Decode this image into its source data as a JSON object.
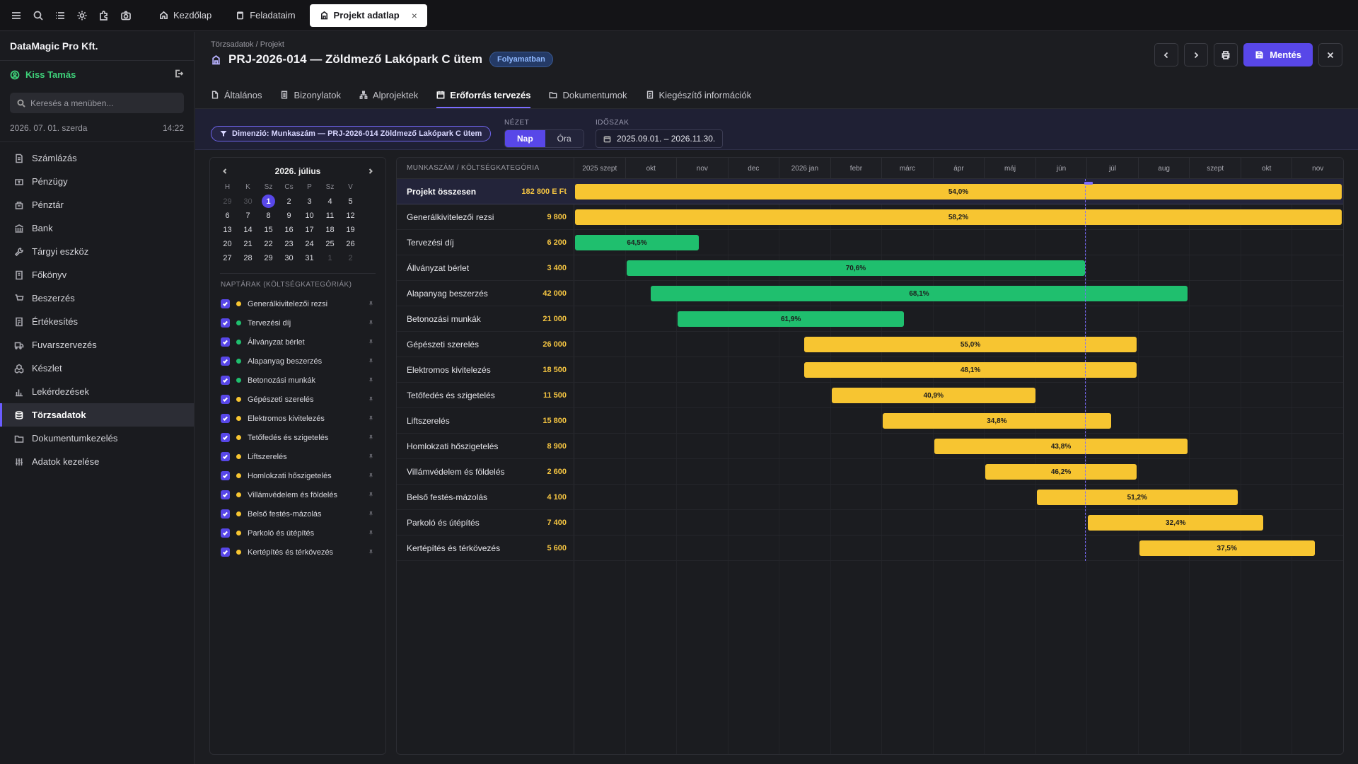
{
  "topbar": {
    "icons": [
      "menu-icon",
      "search-icon",
      "list-icon",
      "gear-icon",
      "puzzle-icon",
      "camera-icon"
    ],
    "tabs": [
      {
        "label": "Kezdőlap",
        "icon": "home-icon"
      },
      {
        "label": "Feladataim",
        "icon": "clipboard-icon"
      },
      {
        "label": "Projekt adatlap",
        "icon": "building-icon",
        "active": true,
        "closable": true
      }
    ],
    "close_symbol": "×"
  },
  "sidebar": {
    "company": "DataMagic Pro Kft.",
    "user": "Kiss Tamás",
    "search_placeholder": "Keresés a menüben...",
    "date": "2026. 07. 01. szerda",
    "time": "14:22",
    "items": [
      {
        "label": "Számlázás",
        "icon": "invoice-icon"
      },
      {
        "label": "Pénzügy",
        "icon": "money-icon"
      },
      {
        "label": "Pénztár",
        "icon": "cashbox-icon"
      },
      {
        "label": "Bank",
        "icon": "bank-icon"
      },
      {
        "label": "Tárgyi eszköz",
        "icon": "tool-icon"
      },
      {
        "label": "Főkönyv",
        "icon": "ledger-icon"
      },
      {
        "label": "Beszerzés",
        "icon": "cart-icon"
      },
      {
        "label": "Értékesítés",
        "icon": "sales-icon"
      },
      {
        "label": "Fuvarszervezés",
        "icon": "truck-icon"
      },
      {
        "label": "Készlet",
        "icon": "boxes-icon"
      },
      {
        "label": "Lekérdezések",
        "icon": "chart-icon"
      },
      {
        "label": "Törzsadatok",
        "icon": "database-icon",
        "active": true
      },
      {
        "label": "Dokumentumkezelés",
        "icon": "folder-icon"
      },
      {
        "label": "Adatok kezelése",
        "icon": "sliders-icon"
      }
    ]
  },
  "header": {
    "breadcrumb": "Törzsadatok / Projekt",
    "title": "PRJ-2026-014 — Zöldmező Lakópark C ütem",
    "status": "Folyamatban",
    "save_label": "Mentés"
  },
  "subtabs": [
    {
      "label": "Általános",
      "icon": "doc-icon"
    },
    {
      "label": "Bizonylatok",
      "icon": "receipt-icon"
    },
    {
      "label": "Alprojektek",
      "icon": "hierarchy-icon"
    },
    {
      "label": "Erőforrás tervezés",
      "icon": "calendar-icon",
      "active": true
    },
    {
      "label": "Dokumentumok",
      "icon": "folder-icon"
    },
    {
      "label": "Kiegészítő információk",
      "icon": "info-doc-icon"
    }
  ],
  "filters": {
    "dimension": "Dimenzió: Munkaszám — PRJ-2026-014 Zöldmező Lakópark C ütem",
    "view_label": "NÉZET",
    "view_options": [
      "Nap",
      "Óra"
    ],
    "view_selected": "Nap",
    "period_label": "IDŐSZAK",
    "period": "2025.09.01. – 2026.11.30."
  },
  "calendar": {
    "month": "2026. július",
    "dow": [
      "H",
      "K",
      "Sz",
      "Cs",
      "P",
      "Sz",
      "V"
    ],
    "weeks": [
      [
        "29",
        "30",
        "1",
        "2",
        "3",
        "4",
        "5"
      ],
      [
        "6",
        "7",
        "8",
        "9",
        "10",
        "11",
        "12"
      ],
      [
        "13",
        "14",
        "15",
        "16",
        "17",
        "18",
        "19"
      ],
      [
        "20",
        "21",
        "22",
        "23",
        "24",
        "25",
        "26"
      ],
      [
        "27",
        "28",
        "29",
        "30",
        "31",
        "1",
        "2"
      ]
    ],
    "selected_day": "1",
    "categories_title": "NAPTÁRAK (KÖLTSÉGKATEGÓRIÁK)"
  },
  "colors": {
    "yellow": "#f7c531",
    "green": "#1fbf6e",
    "accent": "#5847e8"
  },
  "gantt": {
    "header_label": "MUNKASZÁM / KÖLTSÉGKATEGÓRIA",
    "months": [
      "2025 szept",
      "okt",
      "nov",
      "dec",
      "2026 jan",
      "febr",
      "márc",
      "ápr",
      "máj",
      "jún",
      "júl",
      "aug",
      "szept",
      "okt",
      "nov"
    ],
    "today_month_index": 10,
    "total": {
      "name": "Projekt összesen",
      "value": "182 800 E Ft",
      "start": 0,
      "end": 15,
      "pct": "54,0%",
      "color": "yellow"
    },
    "rows": [
      {
        "name": "Generálkivitelezői rezsi",
        "value": "9 800",
        "start": 0,
        "end": 15,
        "pct": "58,2%",
        "color": "yellow"
      },
      {
        "name": "Tervezési díj",
        "value": "6 200",
        "start": 0,
        "end": 2.47,
        "pct": "64,5%",
        "color": "green"
      },
      {
        "name": "Állványzat bérlet",
        "value": "3 400",
        "start": 1,
        "end": 10,
        "pct": "70,6%",
        "color": "green"
      },
      {
        "name": "Alapanyag beszerzés",
        "value": "42 000",
        "start": 1.47,
        "end": 12,
        "pct": "68,1%",
        "color": "green"
      },
      {
        "name": "Betonozási munkák",
        "value": "21 000",
        "start": 2,
        "end": 6.47,
        "pct": "61,9%",
        "color": "green"
      },
      {
        "name": "Gépészeti szerelés",
        "value": "26 000",
        "start": 4.47,
        "end": 11,
        "pct": "55,0%",
        "color": "yellow"
      },
      {
        "name": "Elektromos kivitelezés",
        "value": "18 500",
        "start": 4.47,
        "end": 11,
        "pct": "48,1%",
        "color": "yellow"
      },
      {
        "name": "Tetőfedés és szigetelés",
        "value": "11 500",
        "start": 5,
        "end": 9.03,
        "pct": "40,9%",
        "color": "yellow"
      },
      {
        "name": "Liftszerelés",
        "value": "15 800",
        "start": 6,
        "end": 10.5,
        "pct": "34,8%",
        "color": "yellow"
      },
      {
        "name": "Homlokzati hőszigetelés",
        "value": "8 900",
        "start": 7,
        "end": 12,
        "pct": "43,8%",
        "color": "yellow"
      },
      {
        "name": "Villámvédelem és földelés",
        "value": "2 600",
        "start": 8,
        "end": 11,
        "pct": "46,2%",
        "color": "yellow"
      },
      {
        "name": "Belső festés-mázolás",
        "value": "4 100",
        "start": 9,
        "end": 12.97,
        "pct": "51,2%",
        "color": "yellow"
      },
      {
        "name": "Parkoló és útépítés",
        "value": "7 400",
        "start": 10,
        "end": 13.47,
        "pct": "32,4%",
        "color": "yellow"
      },
      {
        "name": "Kertépítés és térkövezés",
        "value": "5 600",
        "start": 11,
        "end": 14.47,
        "pct": "37,5%",
        "color": "yellow"
      }
    ]
  }
}
